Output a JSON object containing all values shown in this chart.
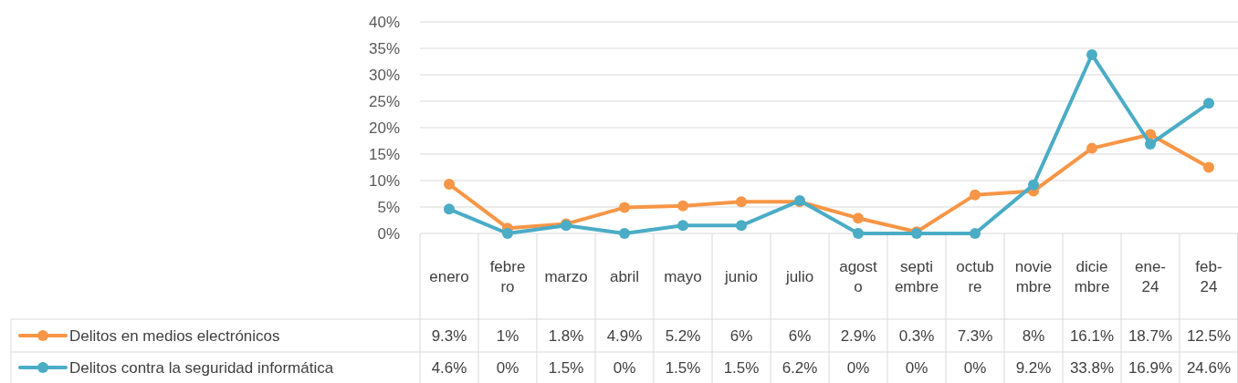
{
  "chart_data": {
    "type": "line",
    "categories": [
      "enero",
      "febrero",
      "marzo",
      "abril",
      "mayo",
      "junio",
      "julio",
      "agosto",
      "septiembre",
      "octubre",
      "noviembre",
      "diciembre",
      "ene-24",
      "feb-24"
    ],
    "series": [
      {
        "name": "Delitos en medios electrónicos",
        "color": "#f79646",
        "values": [
          9.3,
          1,
          1.8,
          4.9,
          5.2,
          6,
          6,
          2.9,
          0.3,
          7.3,
          8,
          16.1,
          18.7,
          12.5
        ],
        "value_labels": [
          "9.3%",
          "1%",
          "1.8%",
          "4.9%",
          "5.2%",
          "6%",
          "6%",
          "2.9%",
          "0.3%",
          "7.3%",
          "8%",
          "16.1%",
          "18.7%",
          "12.5%"
        ]
      },
      {
        "name": "Delitos contra la seguridad informática",
        "color": "#4bacc6",
        "values": [
          4.6,
          0,
          1.5,
          0,
          1.5,
          1.5,
          6.2,
          0,
          0,
          0,
          9.2,
          33.8,
          16.9,
          24.6
        ],
        "value_labels": [
          "4.6%",
          "0%",
          "1.5%",
          "0%",
          "1.5%",
          "1.5%",
          "6.2%",
          "0%",
          "0%",
          "0%",
          "9.2%",
          "33.8%",
          "16.9%",
          "24.6%"
        ]
      }
    ],
    "ylim": [
      0,
      40
    ],
    "yticks": [
      {
        "value": 0,
        "label": "0%"
      },
      {
        "value": 5,
        "label": "5%"
      },
      {
        "value": 10,
        "label": "10%"
      },
      {
        "value": 15,
        "label": "15%"
      },
      {
        "value": 20,
        "label": "20%"
      },
      {
        "value": 25,
        "label": "25%"
      },
      {
        "value": 30,
        "label": "30%"
      },
      {
        "value": 35,
        "label": "35%"
      },
      {
        "value": 40,
        "label": "40%"
      }
    ],
    "grid": "y",
    "legend": "bottom left",
    "marker": "circle",
    "line_style": "solid"
  }
}
